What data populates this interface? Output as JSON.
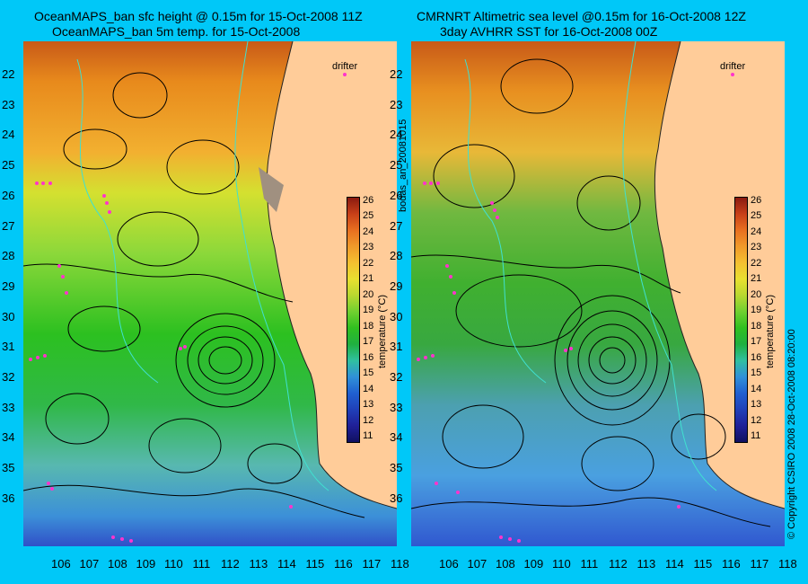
{
  "left_panel": {
    "title_line1": "OceanMAPS_ban sfc height @ 0.15m for 15-Oct-2008 11Z",
    "title_line2": "OceanMAPS_ban 5m temp. for 15-Oct-2008",
    "drifter_label": "drifter",
    "colorbar_label": "temperature (°C)"
  },
  "right_panel": {
    "title_line1": "CMRNRT Altimetric sea level  @0.15m  for 16-Oct-2008 12Z",
    "title_line2": "3day AVHRR SST for 16-Oct-2008 00Z",
    "drifter_label": "drifter",
    "colorbar_label": "temperature (°C)"
  },
  "side_note_middle": "bodas_an_20081015",
  "side_note_right": "© Copyright CSIRO 2008   28-Oct-2008 08:20:00",
  "lat_ticks": [
    "22",
    "23",
    "24",
    "25",
    "26",
    "27",
    "28",
    "29",
    "30",
    "31",
    "32",
    "33",
    "34",
    "35",
    "36"
  ],
  "lon_ticks": [
    "106",
    "107",
    "108",
    "109",
    "110",
    "111",
    "112",
    "113",
    "114",
    "115",
    "116",
    "117",
    "118"
  ],
  "colorbar_ticks": [
    "26",
    "25",
    "24",
    "23",
    "22",
    "21",
    "20",
    "19",
    "18",
    "17",
    "16",
    "15",
    "14",
    "13",
    "12",
    "11"
  ],
  "colors": {
    "background": "#00c8f8",
    "land": "#ffcc99",
    "drifter": "#ff33cc",
    "contour": "#000000",
    "isobath": "#40e0d0"
  }
}
